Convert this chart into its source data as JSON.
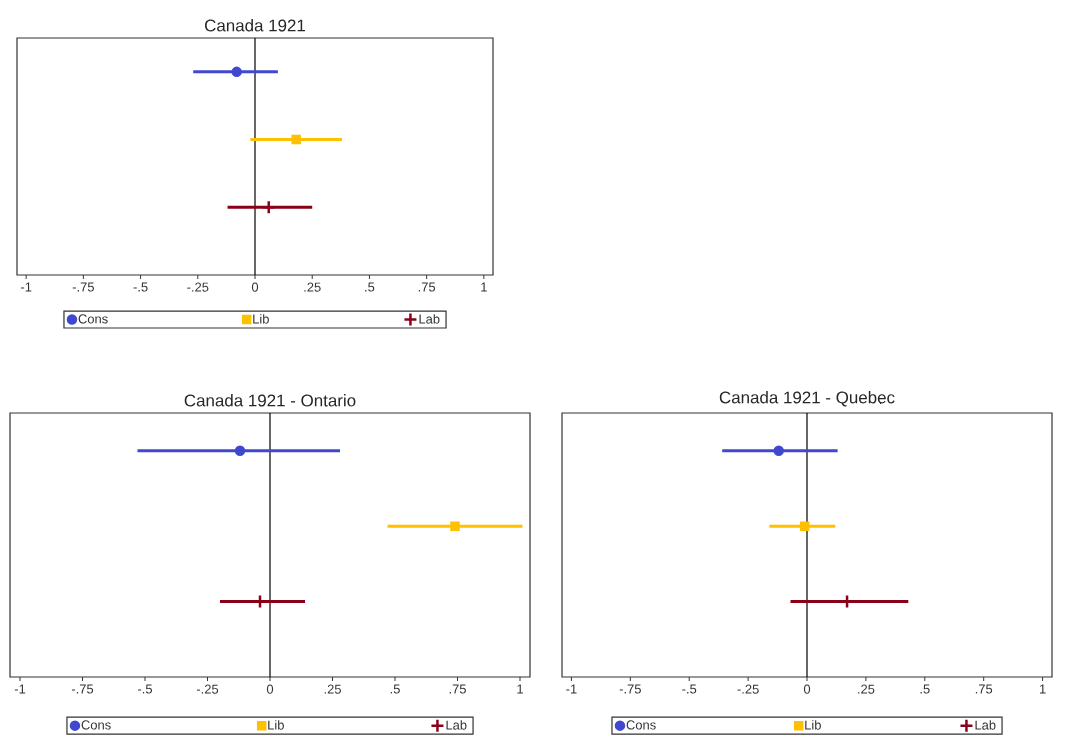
{
  "chart_data": [
    {
      "type": "scatter",
      "title": "Canada 1921",
      "orientation": "horizontal",
      "categories": [
        null,
        null,
        null
      ],
      "xlim": [
        -1.04,
        1.04
      ],
      "xticks": [
        -1,
        {
          "value": -0.75,
          "label": "-.75"
        },
        {
          "value": -0.5,
          "label": "-.5"
        },
        {
          "value": -0.25,
          "label": "-.25"
        },
        0,
        {
          "value": 0.25,
          "label": ".25"
        },
        {
          "value": 0.5,
          "label": ".5"
        },
        {
          "value": 0.75,
          "label": ".75"
        },
        1
      ],
      "ref_lines": [
        {
          "axis": "x",
          "value": 0,
          "color": "#000000"
        }
      ],
      "legend": "bottom",
      "series": [
        {
          "name": "Cons",
          "color": "#4048d0",
          "marker": "circle",
          "values": [
            -0.08,
            null,
            null
          ],
          "errors": [
            [
              -0.27,
              0.1
            ],
            null,
            null
          ]
        },
        {
          "name": "Lib",
          "color": "#ffc000",
          "marker": "square",
          "values": [
            null,
            0.18,
            null
          ],
          "errors": [
            null,
            [
              -0.02,
              0.38
            ],
            null
          ]
        },
        {
          "name": "Lab",
          "color": "#8b0018",
          "marker": "cross",
          "values": [
            null,
            null,
            0.06
          ],
          "errors": [
            null,
            null,
            [
              -0.12,
              0.25
            ]
          ]
        }
      ]
    },
    {
      "type": "scatter",
      "title": "Canada 1921 - Ontario",
      "orientation": "horizontal",
      "categories": [
        null,
        null,
        null
      ],
      "xlim": [
        -1.04,
        1.04
      ],
      "xticks": [
        -1,
        {
          "value": -0.75,
          "label": "-.75"
        },
        {
          "value": -0.5,
          "label": "-.5"
        },
        {
          "value": -0.25,
          "label": "-.25"
        },
        0,
        {
          "value": 0.25,
          "label": ".25"
        },
        {
          "value": 0.5,
          "label": ".5"
        },
        {
          "value": 0.75,
          "label": ".75"
        },
        1
      ],
      "ref_lines": [
        {
          "axis": "x",
          "value": 0,
          "color": "#000000"
        }
      ],
      "legend": "bottom",
      "series": [
        {
          "name": "Cons",
          "color": "#4048d0",
          "marker": "circle",
          "values": [
            -0.12,
            null,
            null
          ],
          "errors": [
            [
              -0.53,
              0.28
            ],
            null,
            null
          ]
        },
        {
          "name": "Lib",
          "color": "#ffc000",
          "marker": "square",
          "values": [
            null,
            0.74,
            null
          ],
          "errors": [
            null,
            [
              0.47,
              1.01
            ],
            null
          ]
        },
        {
          "name": "Lab",
          "color": "#8b0018",
          "marker": "cross",
          "values": [
            null,
            null,
            -0.04
          ],
          "errors": [
            null,
            null,
            [
              -0.2,
              0.14
            ]
          ]
        }
      ]
    },
    {
      "type": "scatter",
      "title": "Canada 1921 - Quebec",
      "orientation": "horizontal",
      "categories": [
        null,
        null,
        null
      ],
      "xlim": [
        -1.04,
        1.04
      ],
      "xticks": [
        -1,
        {
          "value": -0.75,
          "label": "-.75"
        },
        {
          "value": -0.5,
          "label": "-.5"
        },
        {
          "value": -0.25,
          "label": "-.25"
        },
        0,
        {
          "value": 0.25,
          "label": ".25"
        },
        {
          "value": 0.5,
          "label": ".5"
        },
        {
          "value": 0.75,
          "label": ".75"
        },
        1
      ],
      "ref_lines": [
        {
          "axis": "x",
          "value": 0,
          "color": "#000000"
        }
      ],
      "legend": "bottom",
      "series": [
        {
          "name": "Cons",
          "color": "#4048d0",
          "marker": "circle",
          "values": [
            -0.12,
            null,
            null
          ],
          "errors": [
            [
              -0.36,
              0.13
            ],
            null,
            null
          ]
        },
        {
          "name": "Lib",
          "color": "#ffc000",
          "marker": "square",
          "values": [
            null,
            -0.01,
            null
          ],
          "errors": [
            null,
            [
              -0.16,
              0.12
            ],
            null
          ]
        },
        {
          "name": "Lab",
          "color": "#8b0018",
          "marker": "cross",
          "values": [
            null,
            null,
            0.17
          ],
          "errors": [
            null,
            null,
            [
              -0.07,
              0.43
            ]
          ]
        }
      ]
    }
  ]
}
